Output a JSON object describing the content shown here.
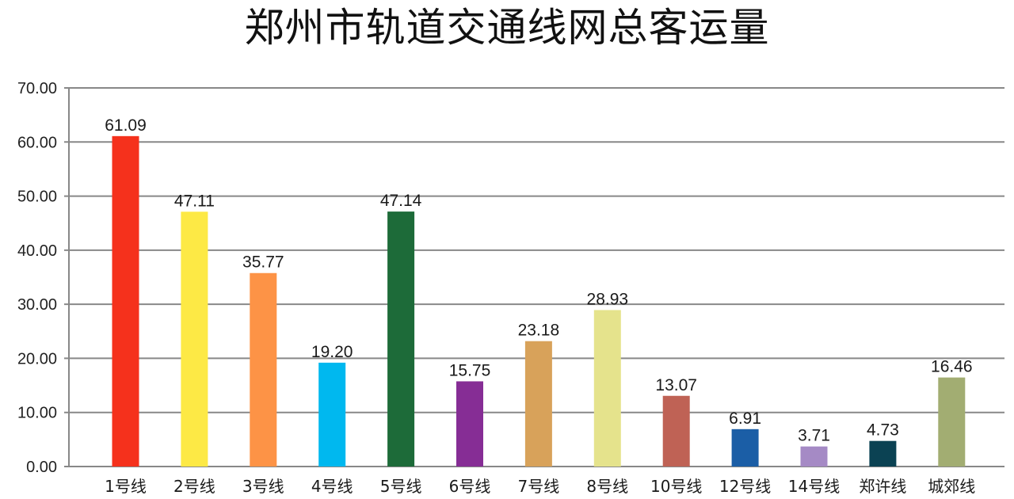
{
  "chart_data": {
    "type": "bar",
    "title": "郑州市轨道交通线网总客运量",
    "xlabel": "",
    "ylabel": "",
    "ylim": [
      0,
      70
    ],
    "yticks": [
      "0.00",
      "10.00",
      "20.00",
      "30.00",
      "40.00",
      "50.00",
      "60.00",
      "70.00"
    ],
    "grid": true,
    "legend": "none",
    "categories": [
      "1号线",
      "2号线",
      "3号线",
      "4号线",
      "5号线",
      "6号线",
      "7号线",
      "8号线",
      "10号线",
      "12号线",
      "14号线",
      "郑许线",
      "城郊线"
    ],
    "values": [
      61.09,
      47.11,
      35.77,
      19.2,
      47.14,
      15.75,
      23.18,
      28.93,
      13.07,
      6.91,
      3.71,
      4.73,
      16.46
    ],
    "value_labels": [
      "61.09",
      "47.11",
      "35.77",
      "19.20",
      "47.14",
      "15.75",
      "23.18",
      "28.93",
      "13.07",
      "6.91",
      "3.71",
      "4.73",
      "16.46"
    ],
    "colors": [
      "#f5311c",
      "#fde945",
      "#fd9346",
      "#00b8ef",
      "#1d6b39",
      "#862d95",
      "#d8a25a",
      "#e5e38c",
      "#bf6255",
      "#1b5ea6",
      "#a58ac5",
      "#0b4253",
      "#a2ad72"
    ],
    "grid_color": "#888888"
  }
}
